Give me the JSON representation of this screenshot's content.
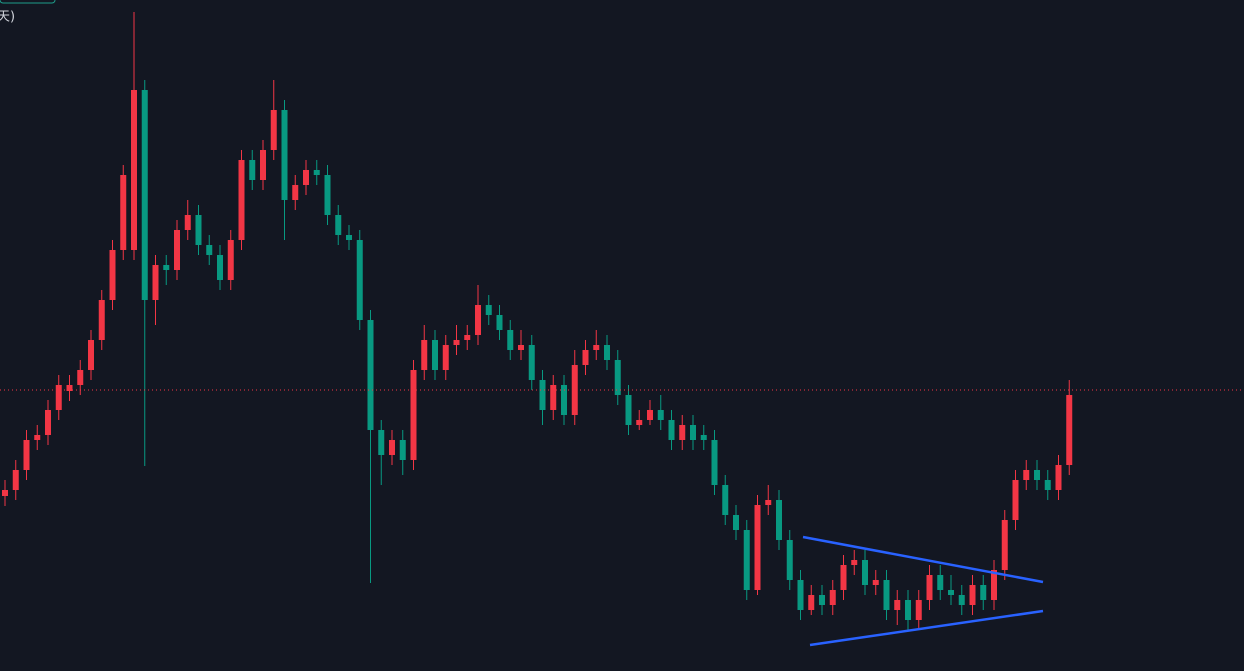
{
  "chart_data": {
    "type": "candlestick",
    "label": "天)",
    "ylim": [
      0,
      671
    ],
    "price_line": 281,
    "up_color": "#f23645",
    "down_color": "#089981",
    "open": [
      175,
      181,
      201,
      231,
      236,
      261,
      280,
      286,
      301,
      331,
      371,
      421,
      421,
      581,
      371,
      406,
      401,
      441,
      456,
      426,
      416,
      391,
      431,
      511,
      491,
      521,
      561,
      471,
      486,
      501,
      496,
      456,
      436,
      431,
      351,
      241,
      216,
      231,
      211,
      301,
      331,
      301,
      326,
      331,
      336,
      366,
      356,
      341,
      321,
      326,
      291,
      261,
      286,
      256,
      306,
      321,
      326,
      311,
      276,
      246,
      251,
      261,
      251,
      231,
      246,
      236,
      231,
      186,
      156,
      141,
      81,
      166,
      171,
      131,
      91,
      61,
      76,
      66,
      81,
      106,
      111,
      86,
      91,
      61,
      71,
      51,
      71,
      96,
      81,
      76,
      66,
      86,
      71,
      101,
      151,
      191,
      201,
      191,
      181,
      206
    ],
    "high": [
      191,
      211,
      241,
      246,
      271,
      296,
      296,
      311,
      341,
      381,
      431,
      506,
      659,
      591,
      416,
      416,
      451,
      471,
      466,
      436,
      426,
      441,
      521,
      521,
      531,
      591,
      571,
      496,
      511,
      511,
      506,
      466,
      446,
      441,
      361,
      251,
      241,
      241,
      311,
      346,
      341,
      336,
      346,
      346,
      386,
      376,
      366,
      351,
      341,
      336,
      301,
      296,
      296,
      321,
      331,
      341,
      336,
      321,
      286,
      261,
      271,
      276,
      261,
      256,
      256,
      246,
      241,
      196,
      166,
      151,
      176,
      186,
      181,
      141,
      101,
      86,
      86,
      91,
      116,
      121,
      121,
      101,
      101,
      81,
      81,
      81,
      106,
      106,
      96,
      86,
      96,
      96,
      111,
      161,
      201,
      211,
      211,
      201,
      216,
      291
    ],
    "low": [
      165,
      171,
      191,
      221,
      226,
      251,
      270,
      276,
      291,
      321,
      361,
      411,
      411,
      205,
      346,
      386,
      391,
      431,
      416,
      406,
      381,
      381,
      421,
      481,
      481,
      511,
      431,
      461,
      476,
      486,
      446,
      426,
      421,
      341,
      88,
      186,
      206,
      196,
      201,
      291,
      291,
      291,
      316,
      321,
      326,
      346,
      331,
      311,
      311,
      281,
      246,
      251,
      246,
      246,
      296,
      311,
      301,
      266,
      236,
      241,
      246,
      241,
      221,
      221,
      221,
      221,
      176,
      146,
      131,
      71,
      76,
      156,
      121,
      81,
      51,
      56,
      56,
      56,
      71,
      96,
      76,
      76,
      51,
      46,
      41,
      41,
      61,
      71,
      66,
      56,
      56,
      61,
      61,
      91,
      141,
      181,
      181,
      171,
      171,
      196
    ],
    "close": [
      181,
      201,
      231,
      236,
      261,
      286,
      286,
      301,
      331,
      371,
      421,
      496,
      581,
      371,
      406,
      401,
      441,
      456,
      426,
      416,
      391,
      431,
      511,
      491,
      521,
      561,
      471,
      486,
      501,
      496,
      456,
      436,
      431,
      351,
      241,
      216,
      231,
      211,
      301,
      331,
      301,
      326,
      331,
      336,
      366,
      356,
      341,
      321,
      326,
      291,
      261,
      286,
      256,
      306,
      321,
      326,
      311,
      276,
      246,
      251,
      261,
      251,
      231,
      246,
      231,
      231,
      186,
      156,
      141,
      81,
      166,
      171,
      131,
      91,
      61,
      76,
      66,
      81,
      106,
      111,
      86,
      91,
      61,
      71,
      51,
      71,
      96,
      81,
      76,
      66,
      86,
      71,
      101,
      151,
      191,
      201,
      191,
      181,
      206,
      276
    ]
  }
}
